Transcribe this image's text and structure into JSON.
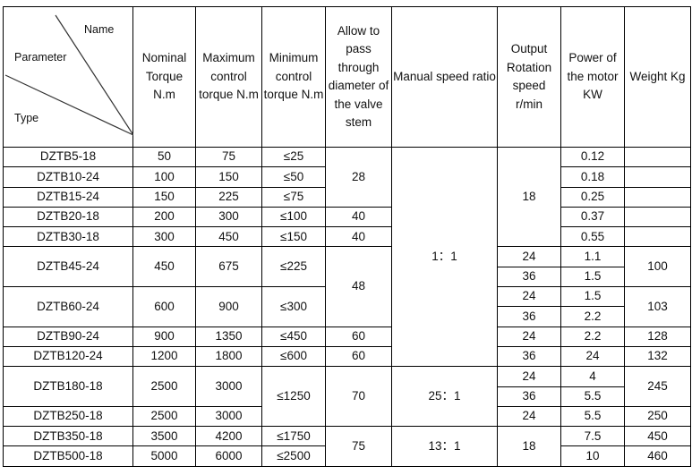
{
  "header": {
    "corner": {
      "name": "Name",
      "parameter": "Parameter",
      "type": "Type"
    },
    "columns": [
      "Nominal Torque N.m",
      "Maximum control torque N.m",
      "Minimum control torque N.m",
      "Allow to pass through diameter of the valve stem",
      "Manual speed ratio",
      "Output Rotation speed r/min",
      "Power of the motor KW",
      "Weight Kg"
    ]
  },
  "rows": [
    [
      "DZTB5-18",
      "50",
      "75",
      "≤25",
      "28",
      "1：1",
      "18",
      "0.12",
      ""
    ],
    [
      "DZTB10-24",
      "100",
      "150",
      "≤50",
      "0.18",
      ""
    ],
    [
      "DZTB15-24",
      "150",
      "225",
      "≤75",
      "0.25",
      ""
    ],
    [
      "DZTB20-18",
      "200",
      "300",
      "≤100",
      "40",
      "0.37",
      ""
    ],
    [
      "DZTB30-18",
      "300",
      "450",
      "≤150",
      "40",
      "0.55",
      ""
    ],
    [
      "DZTB45-24",
      "450",
      "675",
      "≤225",
      "48",
      "24",
      "1.1",
      "100"
    ],
    [
      "36",
      "1.5"
    ],
    [
      "DZTB60-24",
      "600",
      "900",
      "≤300",
      "24",
      "1.5",
      "103"
    ],
    [
      "36",
      "2.2"
    ],
    [
      "DZTB90-24",
      "900",
      "1350",
      "≤450",
      "60",
      "24",
      "2.2",
      "128"
    ],
    [
      "DZTB120-24",
      "1200",
      "1800",
      "≤600",
      "60",
      "36",
      "24",
      "132"
    ],
    [
      "DZTB180-18",
      "2500",
      "3000",
      "≤1250",
      "70",
      "25：1",
      "24",
      "4",
      "245"
    ],
    [
      "36",
      "5.5"
    ],
    [
      "DZTB250-18",
      "2500",
      "3000",
      "24",
      "5.5",
      "250"
    ],
    [
      "DZTB350-18",
      "3500",
      "4200",
      "≤1750",
      "75",
      "13：1",
      "18",
      "7.5",
      "450"
    ],
    [
      "DZTB500-18",
      "5000",
      "6000",
      "≤2500",
      "10",
      "460"
    ]
  ]
}
